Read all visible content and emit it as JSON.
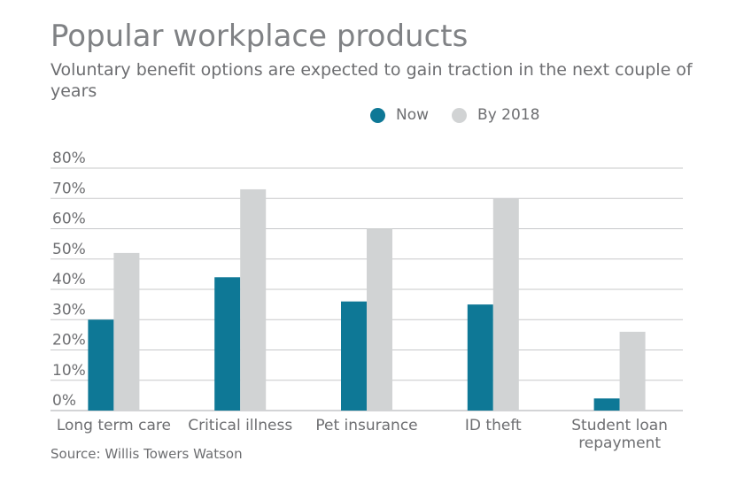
{
  "title": "Popular workplace products",
  "subtitle": "Voluntary benefit options are expected to gain traction in the next couple of years",
  "source": "Source: Willis Towers Watson",
  "chart_data": {
    "type": "bar",
    "categories": [
      "Long term care",
      "Critical illness",
      "Pet insurance",
      "ID theft",
      "Student loan repayment"
    ],
    "series": [
      {
        "name": "Now",
        "color": "#0e7896",
        "values": [
          30,
          44,
          36,
          35,
          4
        ]
      },
      {
        "name": "By 2018",
        "color": "#d1d3d4",
        "values": [
          52,
          73,
          60,
          70,
          26
        ]
      }
    ],
    "yticks": [
      "0%",
      "10%",
      "20%",
      "30%",
      "40%",
      "50%",
      "60%",
      "70%",
      "80%"
    ],
    "ylim": [
      0,
      80
    ],
    "grid": true,
    "legend_position": "top"
  }
}
